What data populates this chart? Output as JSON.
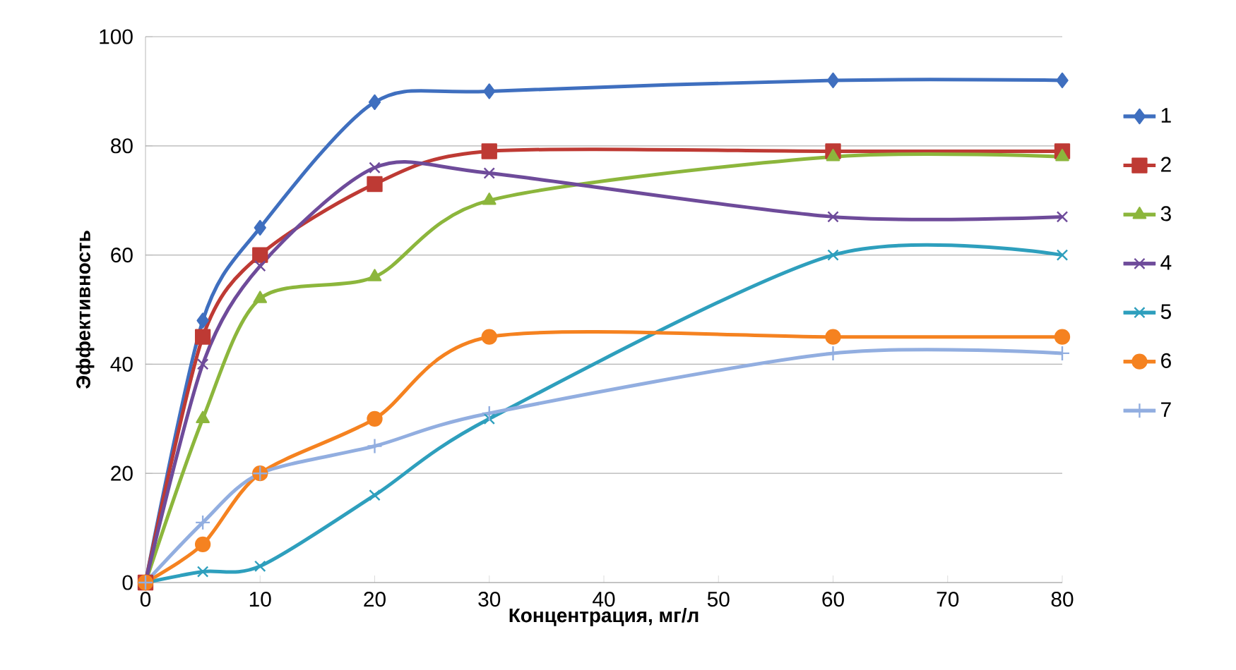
{
  "chart_data": {
    "type": "line",
    "xlabel": "Концентрация, мг/л",
    "ylabel": "Эффективность",
    "x": [
      0,
      5,
      10,
      20,
      30,
      60,
      80
    ],
    "series": [
      {
        "name": "1",
        "color": "#3f6fbf",
        "marker": "diamond",
        "values": [
          0,
          48,
          65,
          88,
          90,
          92,
          92
        ]
      },
      {
        "name": "2",
        "color": "#be3a34",
        "marker": "square",
        "values": [
          0,
          45,
          60,
          73,
          79,
          79,
          79
        ]
      },
      {
        "name": "3",
        "color": "#8cb63c",
        "marker": "triangle",
        "values": [
          0,
          30,
          52,
          56,
          70,
          78,
          78
        ]
      },
      {
        "name": "4",
        "color": "#6e4b9a",
        "marker": "cross",
        "values": [
          0,
          40,
          58,
          76,
          75,
          67,
          67
        ]
      },
      {
        "name": "5",
        "color": "#2e9fbd",
        "marker": "cross",
        "values": [
          0,
          2,
          3,
          16,
          30,
          60,
          60
        ]
      },
      {
        "name": "6",
        "color": "#f58220",
        "marker": "circle",
        "values": [
          0,
          7,
          20,
          30,
          45,
          45,
          45
        ]
      },
      {
        "name": "7",
        "color": "#92aee0",
        "marker": "plus",
        "values": [
          0,
          11,
          20,
          25,
          31,
          42,
          42
        ]
      }
    ],
    "xlim": [
      0,
      80
    ],
    "xticks": [
      0,
      10,
      20,
      30,
      40,
      50,
      60,
      70,
      80
    ],
    "ylim": [
      0,
      100
    ],
    "yticks": [
      0,
      20,
      40,
      60,
      80,
      100
    ],
    "grid": "y",
    "legend": "right",
    "line_style": "solid"
  }
}
